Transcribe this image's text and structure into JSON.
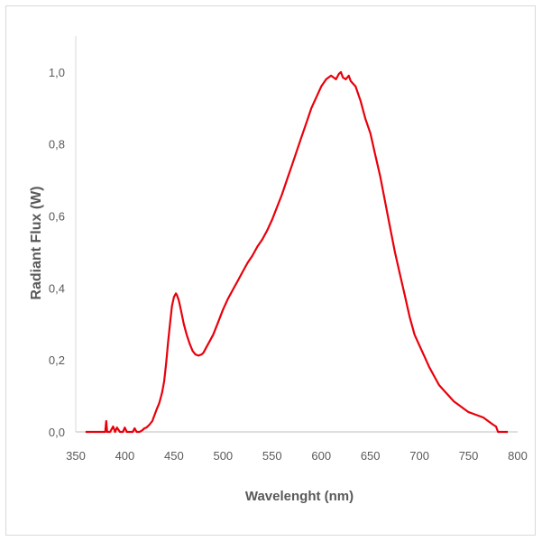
{
  "chart_data": {
    "type": "line",
    "title": "",
    "xlabel": "Wavelenght (nm)",
    "ylabel": "Radiant Flux (W)",
    "xlim": [
      350,
      800
    ],
    "ylim": [
      0,
      1.1
    ],
    "x_ticks": [
      350,
      400,
      450,
      500,
      550,
      600,
      650,
      700,
      750,
      800
    ],
    "y_ticks": [
      0,
      0.2,
      0.4,
      0.6,
      0.8,
      1.0
    ],
    "x_tick_labels": [
      "350",
      "400",
      "450",
      "500",
      "550",
      "600",
      "650",
      "700",
      "750",
      "800"
    ],
    "y_tick_labels": [
      "0,0",
      "0,2",
      "0,4",
      "0,6",
      "0,8",
      "1,0"
    ],
    "grid": false,
    "legend": "none",
    "series": [
      {
        "color": "#e8000b",
        "x": [
          360,
          380,
          381,
          382,
          385,
          388,
          390,
          392,
          395,
          398,
          400,
          402,
          405,
          408,
          410,
          412,
          415,
          418,
          420,
          422,
          425,
          428,
          430,
          432,
          435,
          438,
          440,
          442,
          444,
          446,
          448,
          450,
          452,
          453,
          455,
          457,
          460,
          463,
          466,
          469,
          472,
          475,
          478,
          480,
          483,
          486,
          490,
          495,
          500,
          505,
          510,
          515,
          520,
          525,
          530,
          535,
          540,
          545,
          550,
          555,
          560,
          565,
          570,
          575,
          580,
          585,
          590,
          595,
          600,
          605,
          610,
          615,
          618,
          620,
          622,
          625,
          628,
          630,
          635,
          640,
          645,
          650,
          655,
          660,
          665,
          670,
          675,
          680,
          685,
          690,
          695,
          700,
          705,
          710,
          715,
          720,
          725,
          730,
          735,
          740,
          745,
          750,
          755,
          760,
          765,
          770,
          775,
          778,
          780,
          790
        ],
        "y": [
          0.0,
          0.0,
          0.03,
          0.0,
          0.0,
          0.015,
          0.0,
          0.012,
          0.0,
          0.0,
          0.012,
          0.0,
          0.0,
          0.0,
          0.01,
          0.0,
          0.0,
          0.005,
          0.01,
          0.012,
          0.02,
          0.03,
          0.045,
          0.06,
          0.08,
          0.11,
          0.14,
          0.19,
          0.25,
          0.3,
          0.35,
          0.375,
          0.385,
          0.38,
          0.365,
          0.34,
          0.3,
          0.27,
          0.245,
          0.225,
          0.215,
          0.212,
          0.215,
          0.22,
          0.235,
          0.25,
          0.27,
          0.305,
          0.34,
          0.37,
          0.395,
          0.42,
          0.445,
          0.47,
          0.49,
          0.515,
          0.535,
          0.56,
          0.59,
          0.625,
          0.66,
          0.7,
          0.74,
          0.78,
          0.82,
          0.86,
          0.9,
          0.93,
          0.96,
          0.98,
          0.99,
          0.98,
          0.995,
          1.0,
          0.985,
          0.98,
          0.99,
          0.975,
          0.96,
          0.92,
          0.87,
          0.83,
          0.77,
          0.71,
          0.64,
          0.57,
          0.5,
          0.44,
          0.38,
          0.32,
          0.27,
          0.24,
          0.21,
          0.18,
          0.155,
          0.13,
          0.115,
          0.1,
          0.085,
          0.075,
          0.065,
          0.055,
          0.05,
          0.045,
          0.04,
          0.03,
          0.02,
          0.015,
          0.0,
          0.0
        ]
      }
    ]
  }
}
